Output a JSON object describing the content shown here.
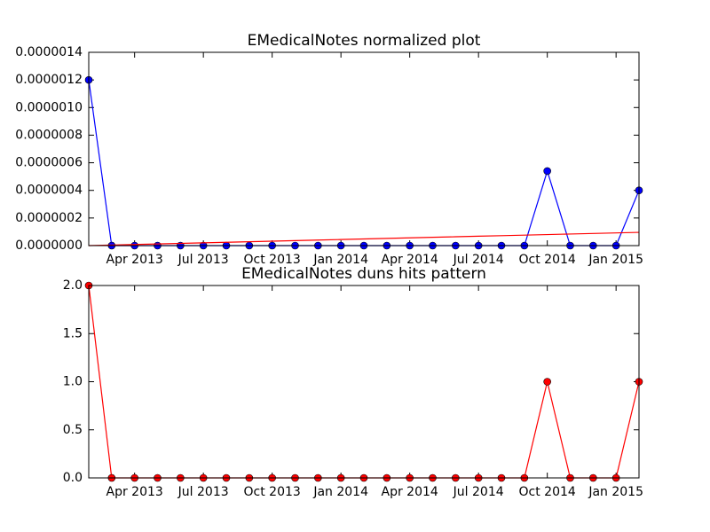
{
  "chart_data": [
    {
      "type": "line",
      "title": "EMedicalNotes normalized plot",
      "x": [
        "2013-02",
        "2013-03",
        "2013-04",
        "2013-05",
        "2013-06",
        "2013-07",
        "2013-08",
        "2013-09",
        "2013-10",
        "2013-11",
        "2013-12",
        "2014-01",
        "2014-02",
        "2014-03",
        "2014-04",
        "2014-05",
        "2014-06",
        "2014-07",
        "2014-08",
        "2014-09",
        "2014-10",
        "2014-11",
        "2014-12",
        "2015-01",
        "2015-02"
      ],
      "series": [
        {
          "color": "#0000ff",
          "marker": "o",
          "values": [
            1.2e-06,
            0,
            0,
            0,
            0,
            0,
            0,
            0,
            0,
            0,
            0,
            0,
            0,
            0,
            0,
            0,
            0,
            0,
            0,
            0,
            5.4e-07,
            0,
            0,
            0,
            4e-07
          ]
        },
        {
          "color": "#ff0000",
          "marker": "none",
          "values": [
            0,
            4e-09,
            8e-09,
            1.2e-08,
            1.6e-08,
            2e-08,
            2.4e-08,
            2.8e-08,
            3.2e-08,
            3.6e-08,
            4e-08,
            4.4e-08,
            4.8e-08,
            5.2e-08,
            5.6e-08,
            6e-08,
            6.4e-08,
            6.8e-08,
            7.2e-08,
            7.6e-08,
            8e-08,
            8.4e-08,
            8.8e-08,
            9.2e-08,
            9.6e-08
          ]
        }
      ],
      "xlim": [
        "2013-02",
        "2015-02"
      ],
      "xticks": [
        {
          "value": "2013-04",
          "label": "Apr 2013"
        },
        {
          "value": "2013-07",
          "label": "Jul 2013"
        },
        {
          "value": "2013-10",
          "label": "Oct 2013"
        },
        {
          "value": "2014-01",
          "label": "Jan 2014"
        },
        {
          "value": "2014-04",
          "label": "Apr 2014"
        },
        {
          "value": "2014-07",
          "label": "Jul 2014"
        },
        {
          "value": "2014-10",
          "label": "Oct 2014"
        },
        {
          "value": "2015-01",
          "label": "Jan 2015"
        }
      ],
      "ylim": [
        0,
        1.4e-06
      ],
      "yticks": [
        {
          "value": 0,
          "label": "0.0000000"
        },
        {
          "value": 2e-07,
          "label": "0.0000002"
        },
        {
          "value": 4e-07,
          "label": "0.0000004"
        },
        {
          "value": 6e-07,
          "label": "0.0000006"
        },
        {
          "value": 8e-07,
          "label": "0.0000008"
        },
        {
          "value": 1e-06,
          "label": "0.0000010"
        },
        {
          "value": 1.2e-06,
          "label": "0.0000012"
        },
        {
          "value": 1.4e-06,
          "label": "0.0000014"
        }
      ]
    },
    {
      "type": "line",
      "title": "EMedicalNotes duns hits pattern",
      "x": [
        "2013-02",
        "2013-03",
        "2013-04",
        "2013-05",
        "2013-06",
        "2013-07",
        "2013-08",
        "2013-09",
        "2013-10",
        "2013-11",
        "2013-12",
        "2014-01",
        "2014-02",
        "2014-03",
        "2014-04",
        "2014-05",
        "2014-06",
        "2014-07",
        "2014-08",
        "2014-09",
        "2014-10",
        "2014-11",
        "2014-12",
        "2015-01",
        "2015-02"
      ],
      "series": [
        {
          "color": "#ff0000",
          "marker": "o",
          "values": [
            2,
            0,
            0,
            0,
            0,
            0,
            0,
            0,
            0,
            0,
            0,
            0,
            0,
            0,
            0,
            0,
            0,
            0,
            0,
            0,
            1,
            0,
            0,
            0,
            1
          ]
        }
      ],
      "xlim": [
        "2013-02",
        "2015-02"
      ],
      "xticks": [
        {
          "value": "2013-04",
          "label": "Apr 2013"
        },
        {
          "value": "2013-07",
          "label": "Jul 2013"
        },
        {
          "value": "2013-10",
          "label": "Oct 2013"
        },
        {
          "value": "2014-01",
          "label": "Jan 2014"
        },
        {
          "value": "2014-04",
          "label": "Apr 2014"
        },
        {
          "value": "2014-07",
          "label": "Jul 2014"
        },
        {
          "value": "2014-10",
          "label": "Oct 2014"
        },
        {
          "value": "2015-01",
          "label": "Jan 2015"
        }
      ],
      "ylim": [
        0,
        2
      ],
      "yticks": [
        {
          "value": 0,
          "label": "0.0"
        },
        1.5,
        {
          "value": 1,
          "label": "1.0"
        },
        0.5,
        {
          "value": 2,
          "label": "2.0"
        }
      ]
    }
  ]
}
